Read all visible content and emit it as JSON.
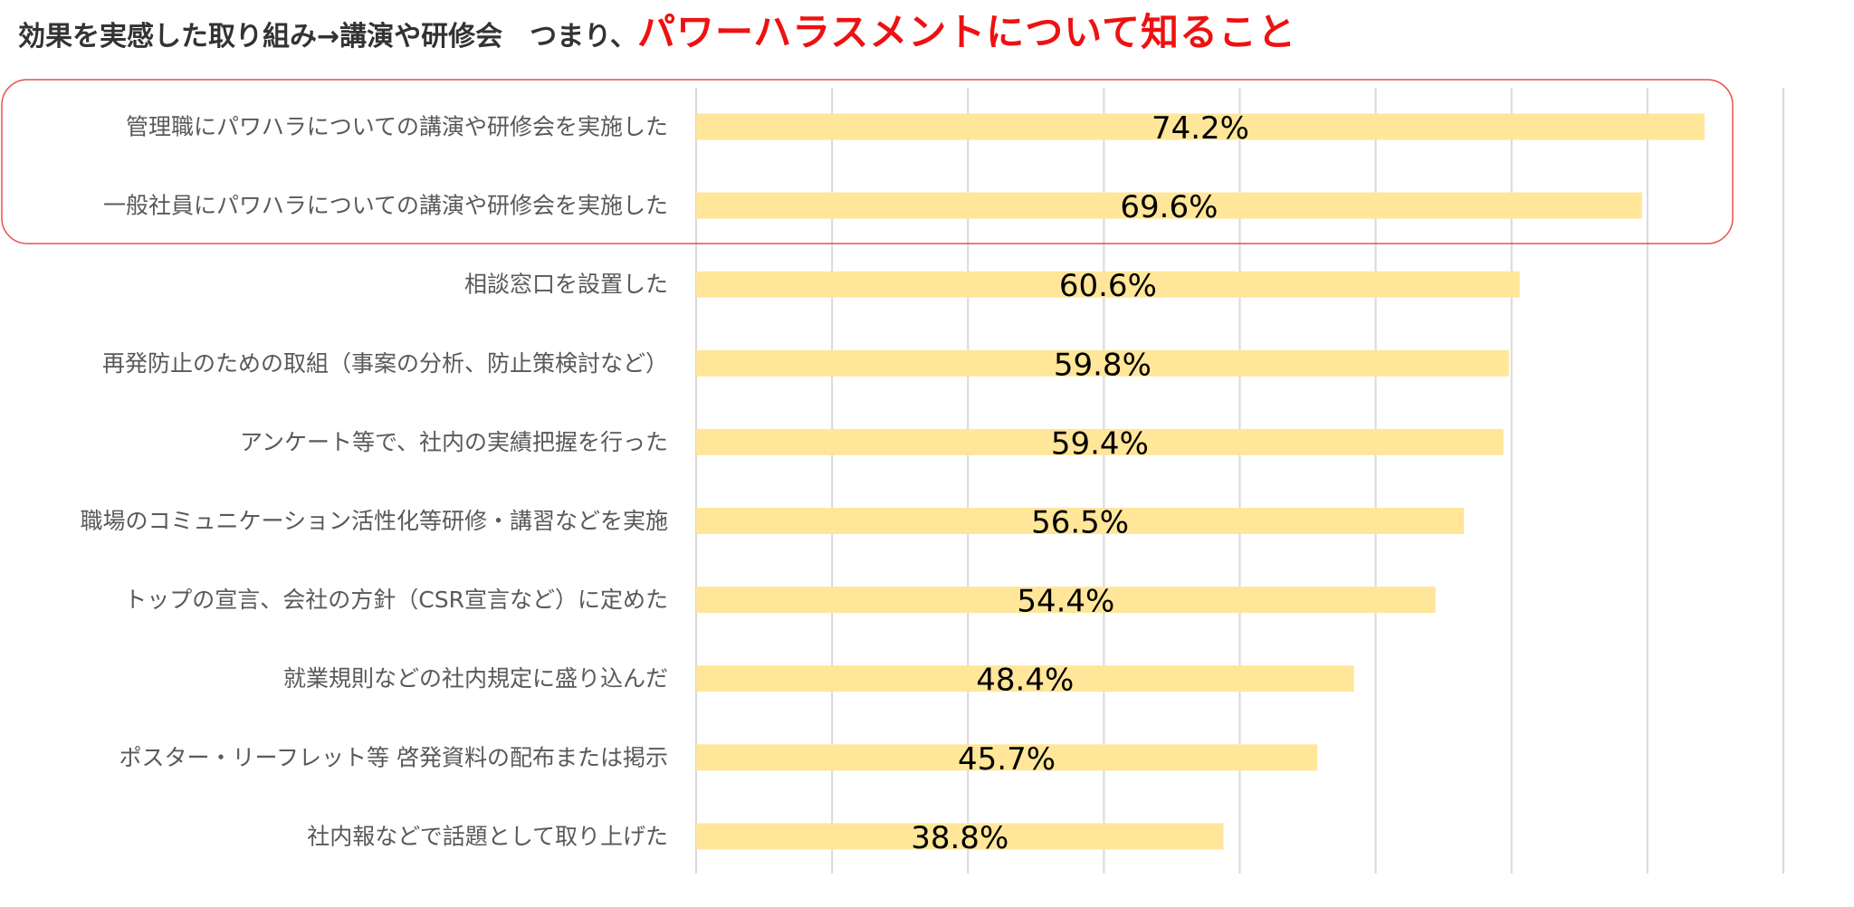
{
  "title": {
    "main": "効果を実感した取り組み→講演や研修会　つまり、",
    "highlight": "パワーハラスメントについて知ること"
  },
  "colors": {
    "bar": "#ffe699",
    "highlight_border": "#e8504a",
    "highlight_text": "#ee1111",
    "gridline": "#d9d9d9",
    "label_text": "#595959"
  },
  "chart_data": {
    "type": "bar",
    "orientation": "horizontal",
    "categories": [
      "管理職にパワハラについての講演や研修会を実施した",
      "一般社員にパワハラについての講演や研修会を実施した",
      "相談窓口を設置した",
      "再発防止のための取組（事案の分析、防止策検討など）",
      "アンケート等で、社内の実績把握を行った",
      "職場のコミュニケーション活性化等研修・講習などを実施",
      "トップの宣言、会社の方針（CSR宣言など）に定めた",
      "就業規則などの社内規定に盛り込んだ",
      "ポスター・リーフレット等 啓発資料の配布または掲示",
      "社内報などで話題として取り上げた"
    ],
    "values": [
      74.2,
      69.6,
      60.6,
      59.8,
      59.4,
      56.5,
      54.4,
      48.4,
      45.7,
      38.8
    ],
    "value_labels": [
      "74.2%",
      "69.6%",
      "60.6%",
      "59.8%",
      "59.4%",
      "56.5%",
      "54.4%",
      "48.4%",
      "45.7%",
      "38.8%"
    ],
    "xlim": [
      0,
      80
    ],
    "grid": true,
    "grid_step": 10,
    "highlighted_categories": [
      0,
      1
    ]
  }
}
